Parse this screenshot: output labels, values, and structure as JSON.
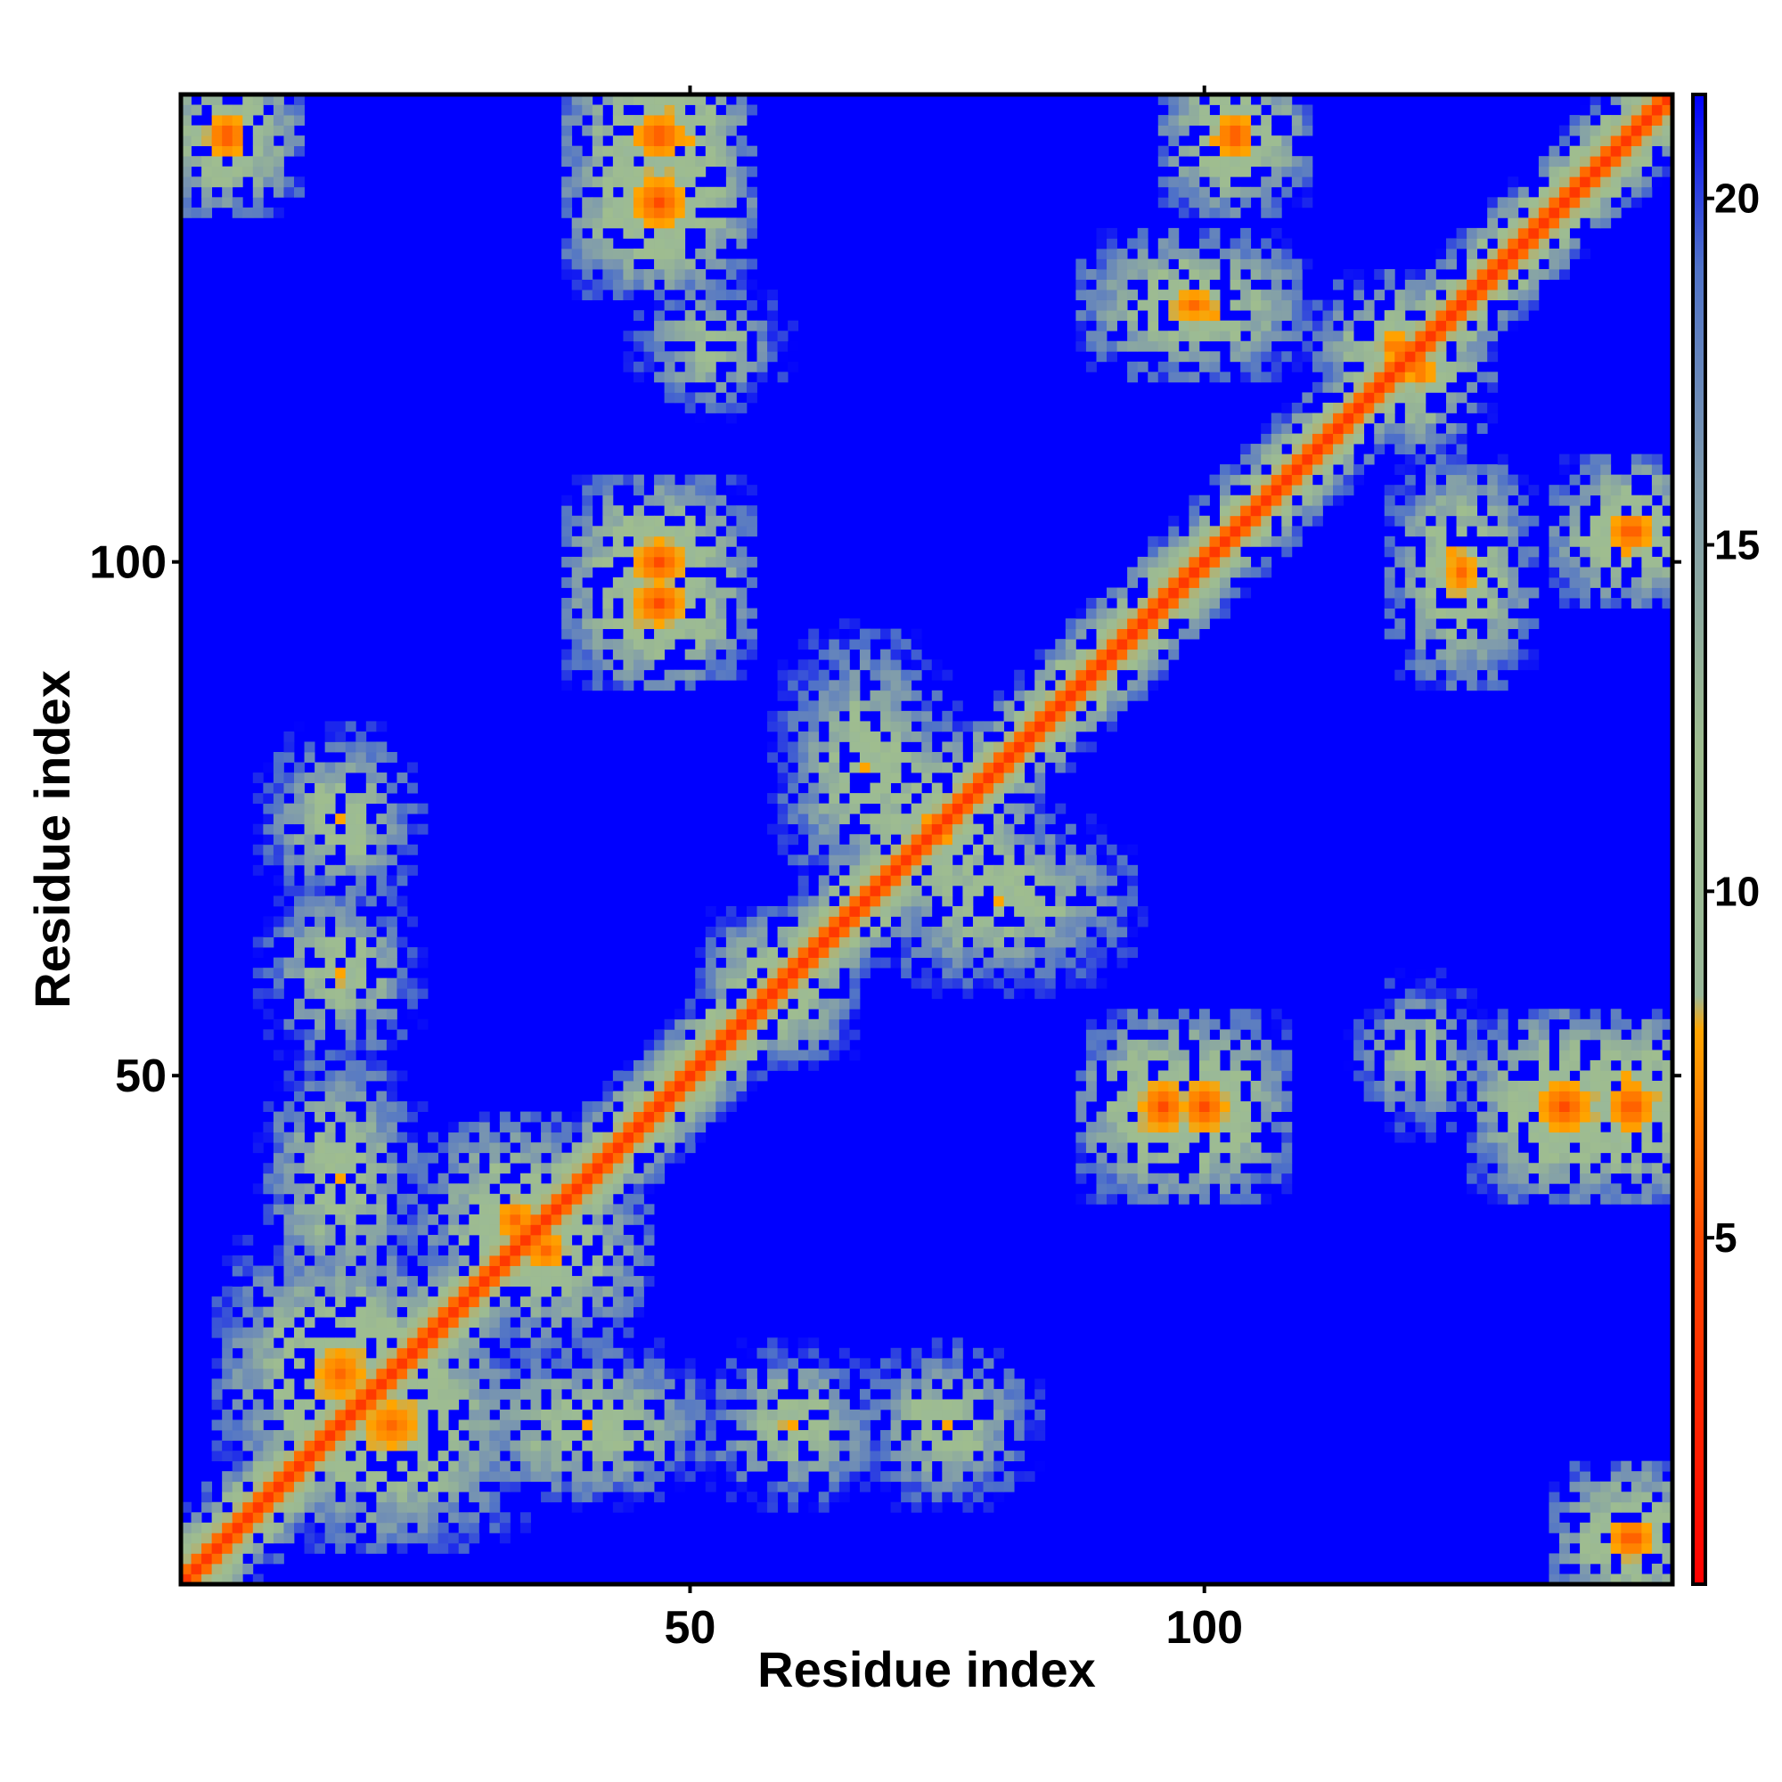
{
  "chart_data": {
    "type": "heatmap",
    "title": "",
    "xlabel": "Residue index",
    "ylabel": "Residue index",
    "n_residues": 145,
    "xlim": [
      1,
      145
    ],
    "ylim": [
      1,
      145
    ],
    "x_ticks": [
      {
        "value": 50,
        "label": "50"
      },
      {
        "value": 100,
        "label": "100"
      }
    ],
    "y_ticks": [
      {
        "value": 50,
        "label": "50"
      },
      {
        "value": 100,
        "label": "100"
      }
    ],
    "colorbar": {
      "range": [
        0,
        21.5
      ],
      "ticks": [
        {
          "value": 5,
          "label": "5"
        },
        {
          "value": 10,
          "label": "10"
        },
        {
          "value": 15,
          "label": "15"
        },
        {
          "value": 20,
          "label": "20"
        }
      ],
      "stops": [
        {
          "value": 0,
          "color": "#ff0000"
        },
        {
          "value": 5,
          "color": "#ff4a00"
        },
        {
          "value": 8,
          "color": "#ffa500"
        },
        {
          "value": 8.5,
          "color": "#99b899"
        },
        {
          "value": 12,
          "color": "#9fbd8f"
        },
        {
          "value": 16,
          "color": "#7d99ae"
        },
        {
          "value": 19,
          "color": "#4f72c8"
        },
        {
          "value": 21.5,
          "color": "#0000ff"
        }
      ]
    },
    "colors": {
      "background": "#0000ff",
      "near_contact": "#ff0000",
      "close_contact": "#ffa500",
      "medium": "#9fbd8f",
      "far": "#0000ff"
    },
    "description": "Symmetric residue-residue distance map; red diagonal band (distance ~0-4), orange/green contact patches off-diagonal, blue background (distance > 20)",
    "diagonal_band": {
      "distance_at_diagonal": 3.8
    },
    "contact_patches": [
      {
        "i": [
          2,
          8
        ],
        "j": [
          138,
          145
        ],
        "min_distance": 5
      },
      {
        "i": [
          42,
          52
        ],
        "j": [
          138,
          145
        ],
        "min_distance": 5
      },
      {
        "i": [
          100,
          106
        ],
        "j": [
          138,
          145
        ],
        "min_distance": 5
      },
      {
        "i": [
          42,
          52
        ],
        "j": [
          92,
          100
        ],
        "min_distance": 5
      },
      {
        "i": [
          96,
          104
        ],
        "j": [
          42,
          52
        ],
        "min_distance": 5
      },
      {
        "i": [
          130,
          140
        ],
        "j": [
          42,
          52
        ],
        "min_distance": 5
      },
      {
        "i": [
          122,
          128
        ],
        "j": [
          92,
          106
        ],
        "min_distance": 6
      },
      {
        "i": [
          8,
          24
        ],
        "j": [
          12,
          30
        ],
        "min_distance": 6
      },
      {
        "i": [
          28,
          38
        ],
        "j": [
          30,
          42
        ],
        "min_distance": 6
      },
      {
        "i": [
          55,
          62
        ],
        "j": [
          55,
          62
        ],
        "min_distance": 6
      },
      {
        "i": [
          68,
          80
        ],
        "j": [
          68,
          80
        ],
        "min_distance": 6
      },
      {
        "i": [
          115,
          122
        ],
        "j": [
          118,
          124
        ],
        "min_distance": 6
      },
      {
        "i": [
          12,
          20
        ],
        "j": [
          30,
          50
        ],
        "min_distance": 8
      },
      {
        "i": [
          55,
          65
        ],
        "j": [
          12,
          20
        ],
        "min_distance": 8
      },
      {
        "i": [
          70,
          80
        ],
        "j": [
          12,
          20
        ],
        "min_distance": 8
      },
      {
        "i": [
          62,
          72
        ],
        "j": [
          70,
          90
        ],
        "min_distance": 8
      },
      {
        "i": [
          48,
          56
        ],
        "j": [
          118,
          124
        ],
        "min_distance": 9
      },
      {
        "i": [
          118,
          124
        ],
        "j": [
          48,
          56
        ],
        "min_distance": 9
      }
    ]
  }
}
